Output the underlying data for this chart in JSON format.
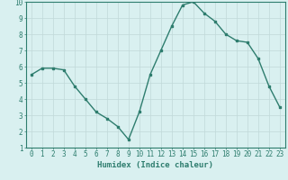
{
  "x": [
    0,
    1,
    2,
    3,
    4,
    5,
    6,
    7,
    8,
    9,
    10,
    11,
    12,
    13,
    14,
    15,
    16,
    17,
    18,
    19,
    20,
    21,
    22,
    23
  ],
  "y": [
    5.5,
    5.9,
    5.9,
    5.8,
    4.8,
    4.0,
    3.2,
    2.8,
    2.3,
    1.5,
    3.2,
    5.5,
    7.0,
    8.5,
    9.8,
    10.0,
    9.3,
    8.8,
    8.0,
    7.6,
    7.5,
    6.5,
    4.8,
    3.5
  ],
  "xlim": [
    -0.5,
    23.5
  ],
  "ylim": [
    1,
    10
  ],
  "yticks": [
    1,
    2,
    3,
    4,
    5,
    6,
    7,
    8,
    9,
    10
  ],
  "xticks": [
    0,
    1,
    2,
    3,
    4,
    5,
    6,
    7,
    8,
    9,
    10,
    11,
    12,
    13,
    14,
    15,
    16,
    17,
    18,
    19,
    20,
    21,
    22,
    23
  ],
  "xlabel": "Humidex (Indice chaleur)",
  "line_color": "#2e7d6e",
  "marker": "s",
  "marker_size": 2.0,
  "bg_color": "#d9f0f0",
  "grid_color": "#c0d8d8",
  "axis_color": "#2e7d6e",
  "xlabel_fontsize": 6.5,
  "tick_fontsize": 5.5,
  "linewidth": 1.0
}
